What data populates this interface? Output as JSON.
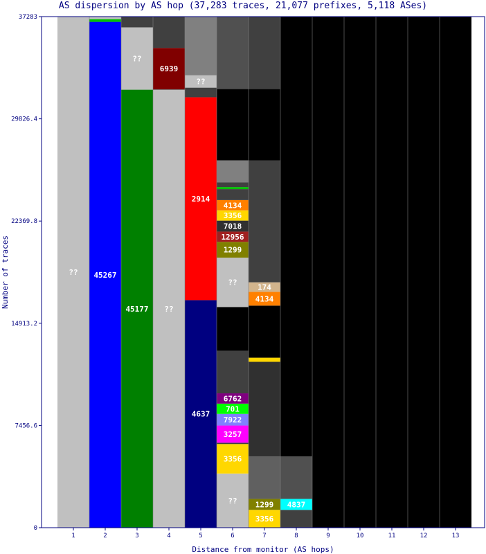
{
  "chart_data": {
    "type": "bar",
    "title": "AS dispersion by AS hop (37,283 traces, 21,077 prefixes, 5,118 ASes)",
    "xlabel": "Distance from monitor (AS hops)",
    "ylabel": "Number of traces",
    "categories": [
      "1",
      "2",
      "3",
      "4",
      "5",
      "6",
      "7",
      "8",
      "9",
      "10",
      "11",
      "12",
      "13"
    ],
    "y_ticks": [
      "0",
      "7456.6",
      "14913.2",
      "22369.8",
      "29826.4",
      "37283"
    ],
    "ylim": [
      0,
      37283
    ],
    "grid": false,
    "columns": [
      {
        "hop": 1,
        "segments": [
          {
            "label": "??",
            "from": 0,
            "to": 37283,
            "color": "#c0c0c0"
          }
        ]
      },
      {
        "hop": 2,
        "segments": [
          {
            "label": "45267",
            "from": 0,
            "to": 36900,
            "color": "#0000ff"
          },
          {
            "label": "",
            "from": 36900,
            "to": 37100,
            "color": "#00c000"
          },
          {
            "label": "",
            "from": 37100,
            "to": 37283,
            "color": "#c0c0c0"
          }
        ]
      },
      {
        "hop": 3,
        "segments": [
          {
            "label": "45177",
            "from": 0,
            "to": 31950,
            "color": "#008000"
          },
          {
            "label": "??",
            "from": 31950,
            "to": 36500,
            "color": "#c0c0c0"
          },
          {
            "label": "",
            "from": 36500,
            "to": 37283,
            "color": "#404040"
          }
        ]
      },
      {
        "hop": 4,
        "segments": [
          {
            "label": "??",
            "from": 0,
            "to": 31950,
            "color": "#c0c0c0"
          },
          {
            "label": "",
            "from": 31950,
            "to": 31980,
            "color": "#404040"
          },
          {
            "label": "6939",
            "from": 31980,
            "to": 35000,
            "color": "#800000"
          },
          {
            "label": "",
            "from": 35000,
            "to": 37283,
            "color": "#404040"
          }
        ]
      },
      {
        "hop": 5,
        "segments": [
          {
            "label": "4637",
            "from": 0,
            "to": 16600,
            "color": "#000080"
          },
          {
            "label": "2914",
            "from": 16600,
            "to": 31400,
            "color": "#ff0000"
          },
          {
            "label": "",
            "from": 31400,
            "to": 32100,
            "color": "#404040"
          },
          {
            "label": "??",
            "from": 32100,
            "to": 33000,
            "color": "#c0c0c0"
          },
          {
            "label": "",
            "from": 33000,
            "to": 37283,
            "color": "#808080"
          }
        ]
      },
      {
        "hop": 6,
        "segments": [
          {
            "label": "??",
            "from": 0,
            "to": 3950,
            "color": "#c0c0c0"
          },
          {
            "label": "3356",
            "from": 3950,
            "to": 6100,
            "color": "#ffd700"
          },
          {
            "label": "",
            "from": 6100,
            "to": 6200,
            "color": "#404040"
          },
          {
            "label": "3257",
            "from": 6200,
            "to": 7450,
            "color": "#ff00ff"
          },
          {
            "label": "7922",
            "from": 7450,
            "to": 8300,
            "color": "#8080ff"
          },
          {
            "label": "701",
            "from": 8300,
            "to": 9050,
            "color": "#00ff00"
          },
          {
            "label": "6762",
            "from": 9050,
            "to": 9800,
            "color": "#800080"
          },
          {
            "label": "",
            "from": 9800,
            "to": 12900,
            "color": "#404040"
          },
          {
            "label": "",
            "from": 12900,
            "to": 16100,
            "color": "#000000"
          },
          {
            "label": "??",
            "from": 16100,
            "to": 19700,
            "color": "#c0c0c0"
          },
          {
            "label": "1299",
            "from": 19700,
            "to": 20850,
            "color": "#808000"
          },
          {
            "label": "12956",
            "from": 20850,
            "to": 21600,
            "color": "#a02020"
          },
          {
            "label": "7018",
            "from": 21600,
            "to": 22400,
            "color": "#303030"
          },
          {
            "label": "3356",
            "from": 22400,
            "to": 23150,
            "color": "#ffd700"
          },
          {
            "label": "4134",
            "from": 23150,
            "to": 23900,
            "color": "#ff8000"
          },
          {
            "label": "",
            "from": 23900,
            "to": 24700,
            "color": "#404040"
          },
          {
            "label": "",
            "from": 24700,
            "to": 24850,
            "color": "#00c000"
          },
          {
            "label": "",
            "from": 24850,
            "to": 25200,
            "color": "#404040"
          },
          {
            "label": "",
            "from": 25200,
            "to": 26800,
            "color": "#808080"
          },
          {
            "label": "",
            "from": 26800,
            "to": 32000,
            "color": "#000000"
          },
          {
            "label": "",
            "from": 32000,
            "to": 37283,
            "color": "#505050"
          }
        ]
      },
      {
        "hop": 7,
        "segments": [
          {
            "label": "3356",
            "from": 0,
            "to": 1300,
            "color": "#ffd700"
          },
          {
            "label": "1299",
            "from": 1300,
            "to": 2100,
            "color": "#808000"
          },
          {
            "label": "",
            "from": 2100,
            "to": 5200,
            "color": "#606060"
          },
          {
            "label": "",
            "from": 5200,
            "to": 12100,
            "color": "#303030"
          },
          {
            "label": "",
            "from": 12100,
            "to": 12400,
            "color": "#ffd700"
          },
          {
            "label": "",
            "from": 12400,
            "to": 16200,
            "color": "#000000"
          },
          {
            "label": "4134",
            "from": 16200,
            "to": 17200,
            "color": "#ff8000"
          },
          {
            "label": "174",
            "from": 17200,
            "to": 17900,
            "color": "#d2b48c"
          },
          {
            "label": "",
            "from": 17900,
            "to": 26800,
            "color": "#404040"
          },
          {
            "label": "",
            "from": 26800,
            "to": 32000,
            "color": "#000000"
          },
          {
            "label": "",
            "from": 32000,
            "to": 37283,
            "color": "#404040"
          }
        ]
      },
      {
        "hop": 8,
        "segments": [
          {
            "label": "",
            "from": 0,
            "to": 1300,
            "color": "#404040"
          },
          {
            "label": "4837",
            "from": 1300,
            "to": 2100,
            "color": "#00ffff"
          },
          {
            "label": "",
            "from": 2100,
            "to": 5200,
            "color": "#505050"
          },
          {
            "label": "",
            "from": 5200,
            "to": 37283,
            "color": "#000000"
          }
        ]
      },
      {
        "hop": 9,
        "segments": [
          {
            "label": "",
            "from": 0,
            "to": 37283,
            "color": "#000000"
          }
        ]
      },
      {
        "hop": 10,
        "segments": [
          {
            "label": "",
            "from": 0,
            "to": 37283,
            "color": "#000000"
          }
        ]
      },
      {
        "hop": 11,
        "segments": [
          {
            "label": "",
            "from": 0,
            "to": 37283,
            "color": "#000000"
          }
        ]
      },
      {
        "hop": 12,
        "segments": [
          {
            "label": "",
            "from": 0,
            "to": 37283,
            "color": "#000000"
          }
        ]
      },
      {
        "hop": 13,
        "segments": [
          {
            "label": "",
            "from": 0,
            "to": 37283,
            "color": "#000000"
          }
        ]
      }
    ]
  },
  "colors": {
    "axis": "#000080",
    "background": "#ffffff",
    "divider": "#808080"
  }
}
